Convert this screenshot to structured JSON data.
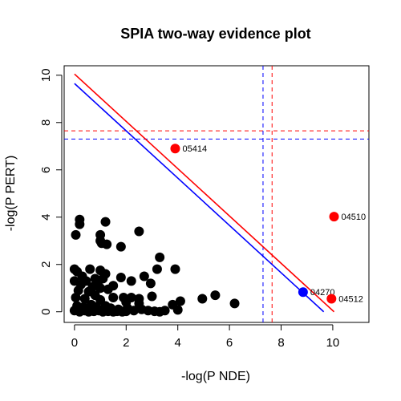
{
  "chart_data": {
    "type": "scatter",
    "title": "SPIA two-way evidence plot",
    "xlabel": "-log(P NDE)",
    "ylabel": "-log(P PERT)",
    "xlim": [
      -0.4,
      11.4
    ],
    "ylim": [
      -0.45,
      10.4
    ],
    "xticks": [
      0,
      2,
      4,
      6,
      8,
      10
    ],
    "yticks": [
      0,
      2,
      4,
      6,
      8,
      10
    ],
    "grid": false,
    "colors": {
      "default": "#000000",
      "red": "#ff0000",
      "blue": "#0000ff"
    },
    "threshold_lines": [
      {
        "orientation": "horizontal",
        "value": 7.65,
        "color": "#ff0000",
        "style": "dashed"
      },
      {
        "orientation": "horizontal",
        "value": 7.3,
        "color": "#0000ff",
        "style": "dashed"
      },
      {
        "orientation": "vertical",
        "value": 7.65,
        "color": "#ff0000",
        "style": "dashed"
      },
      {
        "orientation": "vertical",
        "value": 7.3,
        "color": "#0000ff",
        "style": "dashed"
      }
    ],
    "combined_lines": [
      {
        "color": "#ff0000",
        "x": [
          0.0,
          10.05
        ],
        "y": [
          10.05,
          0.0
        ]
      },
      {
        "color": "#0000ff",
        "x": [
          0.0,
          9.65
        ],
        "y": [
          9.65,
          0.0
        ]
      }
    ],
    "highlighted": [
      {
        "x": 3.9,
        "y": 6.9,
        "color": "red",
        "label": "05414"
      },
      {
        "x": 10.05,
        "y": 4.02,
        "color": "red",
        "label": "04510"
      },
      {
        "x": 8.85,
        "y": 0.83,
        "color": "blue",
        "label": "04270"
      },
      {
        "x": 9.95,
        "y": 0.55,
        "color": "red",
        "label": "04512"
      }
    ],
    "points": [
      [
        0.2,
        3.9
      ],
      [
        0.2,
        3.7
      ],
      [
        0.05,
        3.25
      ],
      [
        1.2,
        3.8
      ],
      [
        1.0,
        3.25
      ],
      [
        1.0,
        3.0
      ],
      [
        1.05,
        2.9
      ],
      [
        1.25,
        2.85
      ],
      [
        1.8,
        2.75
      ],
      [
        2.5,
        3.4
      ],
      [
        3.3,
        2.3
      ],
      [
        3.9,
        1.8
      ],
      [
        0.0,
        1.8
      ],
      [
        0.1,
        1.7
      ],
      [
        0.6,
        1.8
      ],
      [
        1.0,
        1.75
      ],
      [
        1.2,
        1.6
      ],
      [
        0.3,
        1.5
      ],
      [
        0.8,
        1.4
      ],
      [
        1.1,
        1.4
      ],
      [
        0.45,
        1.3
      ],
      [
        1.8,
        1.45
      ],
      [
        3.2,
        1.8
      ],
      [
        2.7,
        1.5
      ],
      [
        2.95,
        1.2
      ],
      [
        2.2,
        1.3
      ],
      [
        0.0,
        1.3
      ],
      [
        0.25,
        1.15
      ],
      [
        0.7,
        1.05
      ],
      [
        1.0,
        1.0
      ],
      [
        0.15,
        0.9
      ],
      [
        0.55,
        0.85
      ],
      [
        1.3,
        0.95
      ],
      [
        0.05,
        0.6
      ],
      [
        0.4,
        0.55
      ],
      [
        0.8,
        0.7
      ],
      [
        1.0,
        0.5
      ],
      [
        1.5,
        0.6
      ],
      [
        1.9,
        0.6
      ],
      [
        2.0,
        0.4
      ],
      [
        2.2,
        0.6
      ],
      [
        2.5,
        0.55
      ],
      [
        2.5,
        0.35
      ],
      [
        3.0,
        0.65
      ],
      [
        3.8,
        0.3
      ],
      [
        4.1,
        0.45
      ],
      [
        4.95,
        0.55
      ],
      [
        5.45,
        0.7
      ],
      [
        6.2,
        0.35
      ],
      [
        0.1,
        0.25
      ],
      [
        0.35,
        0.2
      ],
      [
        0.65,
        0.3
      ],
      [
        0.85,
        0.2
      ],
      [
        1.2,
        0.25
      ],
      [
        1.4,
        0.15
      ],
      [
        1.7,
        0.1
      ],
      [
        2.05,
        0.15
      ],
      [
        2.3,
        0.05
      ],
      [
        2.6,
        0.1
      ],
      [
        2.85,
        0.05
      ],
      [
        3.1,
        0.02
      ],
      [
        3.5,
        0.05
      ],
      [
        4.0,
        0.08
      ],
      [
        0.0,
        0.05
      ],
      [
        0.2,
        0.0
      ],
      [
        0.4,
        0.05
      ],
      [
        0.55,
        0.0
      ],
      [
        0.75,
        0.02
      ],
      [
        0.95,
        0.05
      ],
      [
        1.1,
        0.0
      ],
      [
        1.3,
        0.02
      ],
      [
        1.5,
        0.0
      ],
      [
        1.65,
        0.02
      ],
      [
        1.85,
        0.0
      ],
      [
        2.0,
        0.02
      ],
      [
        3.3,
        0.0
      ],
      [
        0.9,
        1.2
      ],
      [
        1.5,
        1.1
      ]
    ]
  }
}
